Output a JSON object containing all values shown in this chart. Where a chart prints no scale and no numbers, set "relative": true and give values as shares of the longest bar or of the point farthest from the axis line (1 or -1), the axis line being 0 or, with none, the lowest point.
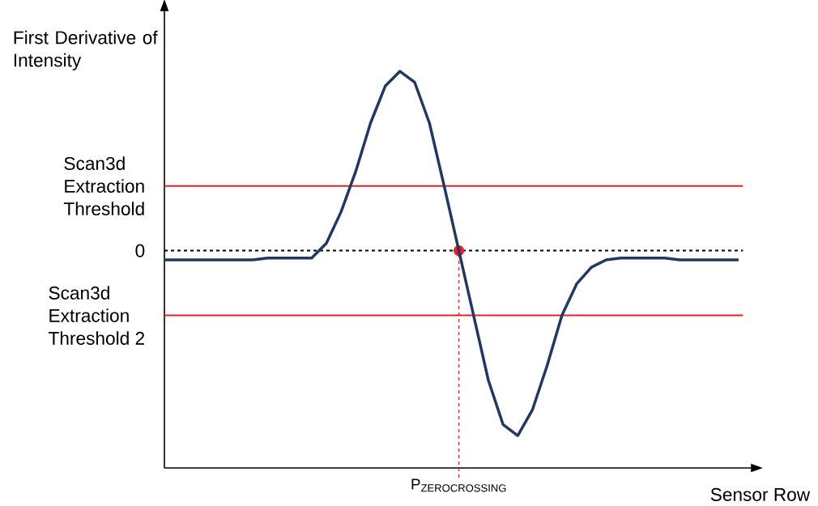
{
  "chart_data": {
    "type": "line",
    "relative": true,
    "xlabel": "Sensor Row",
    "ylabel": "First Derivative of Intensity",
    "marker": "none",
    "categories": [
      null,
      null,
      null,
      null,
      null,
      null,
      null,
      null,
      null,
      null,
      null,
      null,
      null,
      null,
      null,
      null,
      null,
      null,
      null,
      null,
      null,
      null,
      null,
      null,
      null,
      null,
      null,
      null,
      null,
      null,
      null,
      null,
      null,
      null,
      null,
      null,
      null,
      null,
      null,
      null
    ],
    "annotations": [
      {
        "text": "\\mathrm{P}_{\\mathrm{ZEROCROSSING}}",
        "y": 0
      }
    ],
    "series": [
      {
        "color": "#1f3864",
        "values": [
          -0.05,
          -0.05,
          -0.05,
          -0.05,
          -0.05,
          -0.05,
          -0.05,
          -0.04,
          -0.04,
          -0.04,
          -0.04,
          0.04,
          0.21,
          0.43,
          0.69,
          0.89,
          0.97,
          0.91,
          0.69,
          0.35,
          0,
          -0.35,
          -0.7,
          -0.94,
          -1,
          -0.86,
          -0.62,
          -0.35,
          -0.18,
          -0.09,
          -0.05,
          -0.04,
          -0.04,
          -0.04,
          -0.04,
          -0.05,
          -0.05,
          -0.05,
          -0.05,
          -0.05
        ]
      }
    ],
    "ref_lines": [
      {
        "axis": "y",
        "value": 0.35,
        "label": "Scan3d Extraction Threshold",
        "color": "#e8202a",
        "line_style": "solid"
      },
      {
        "axis": "y",
        "value": 0,
        "label": "0",
        "color": "#000000",
        "line_style": "dashed"
      },
      {
        "axis": "y",
        "value": -0.35,
        "label": "Scan3d Extraction Threshold 2",
        "color": "#e8202a",
        "line_style": "solid"
      }
    ]
  }
}
